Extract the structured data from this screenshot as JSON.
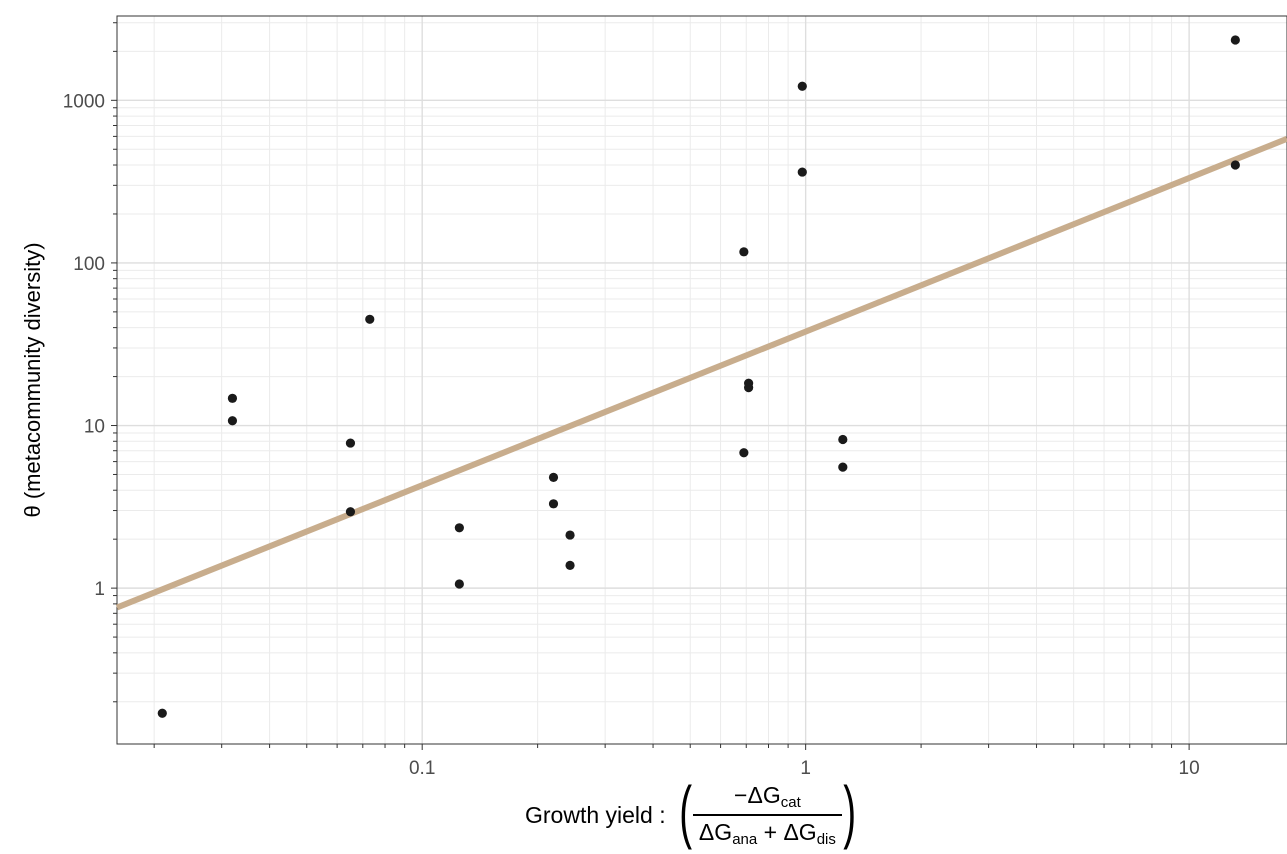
{
  "chart_data": {
    "type": "scatter",
    "title": "",
    "xlabel": "Growth yield :",
    "xlabel_fraction": {
      "numerator": {
        "prefix": "−ΔG",
        "sub": "cat"
      },
      "denominator": [
        {
          "prefix": "ΔG",
          "sub": "ana"
        },
        {
          "op": " + "
        },
        {
          "prefix": "ΔG",
          "sub": "dis"
        }
      ]
    },
    "ylabel": "θ (metacommunity diversity)",
    "x_scale": "log10",
    "y_scale": "log10",
    "xlim": [
      0.016,
      18
    ],
    "ylim": [
      0.11,
      3300
    ],
    "x_ticks": [
      0.1,
      1,
      10
    ],
    "x_tick_labels": [
      "0.1",
      "1",
      "10"
    ],
    "y_ticks": [
      1,
      10,
      100,
      1000
    ],
    "y_tick_labels": [
      "1",
      "10",
      "100",
      "1000"
    ],
    "grid": true,
    "legend": "none",
    "point_color": "#1a1a1a",
    "line_color": "#c8ad8d",
    "points": [
      {
        "x": 0.021,
        "y": 0.17
      },
      {
        "x": 0.032,
        "y": 14.7
      },
      {
        "x": 0.032,
        "y": 10.7
      },
      {
        "x": 0.065,
        "y": 7.8
      },
      {
        "x": 0.065,
        "y": 2.95
      },
      {
        "x": 0.073,
        "y": 45
      },
      {
        "x": 0.125,
        "y": 2.35
      },
      {
        "x": 0.125,
        "y": 1.06
      },
      {
        "x": 0.22,
        "y": 4.8
      },
      {
        "x": 0.22,
        "y": 3.3
      },
      {
        "x": 0.243,
        "y": 2.12
      },
      {
        "x": 0.243,
        "y": 1.38
      },
      {
        "x": 0.69,
        "y": 117
      },
      {
        "x": 0.69,
        "y": 6.8
      },
      {
        "x": 0.71,
        "y": 18.2
      },
      {
        "x": 0.71,
        "y": 17.1
      },
      {
        "x": 0.98,
        "y": 1220
      },
      {
        "x": 0.98,
        "y": 362
      },
      {
        "x": 1.25,
        "y": 8.2
      },
      {
        "x": 1.25,
        "y": 5.55
      },
      {
        "x": 13.2,
        "y": 2350
      },
      {
        "x": 13.2,
        "y": 400
      }
    ],
    "trend_line": {
      "x": [
        0.016,
        18
      ],
      "y": [
        0.76,
        580
      ]
    }
  }
}
